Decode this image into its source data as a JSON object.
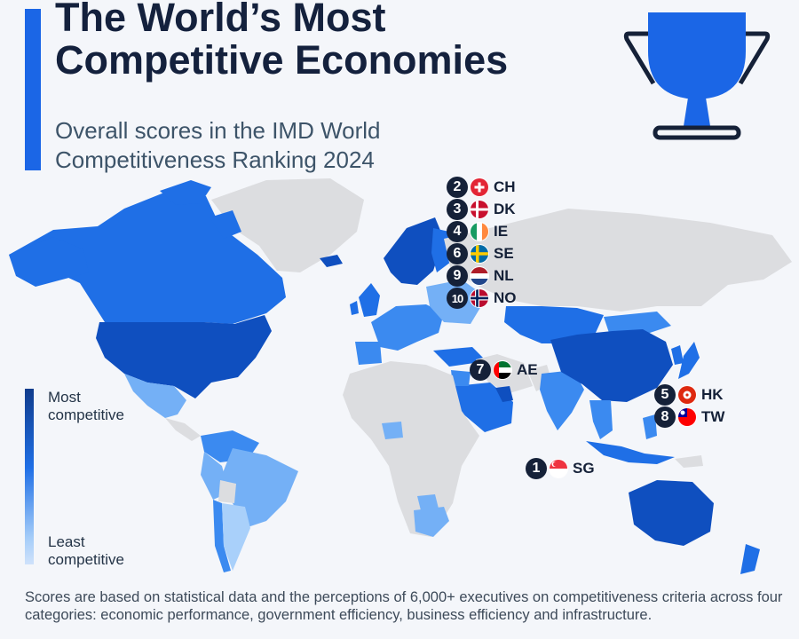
{
  "header": {
    "title_line1": "The World’s Most",
    "title_line2": "Competitive Economies",
    "subtitle_line1": "Overall scores in the IMD World",
    "subtitle_line2": "Competitiveness Ranking 2024"
  },
  "legend": {
    "most_line1": "Most",
    "most_line2": "competitive",
    "least_line1": "Least",
    "least_line2": "competitive"
  },
  "rankings": [
    {
      "rank": "1",
      "code": "SG",
      "flag": "singapore-flag-icon"
    },
    {
      "rank": "2",
      "code": "CH",
      "flag": "switzerland-flag-icon"
    },
    {
      "rank": "3",
      "code": "DK",
      "flag": "denmark-flag-icon"
    },
    {
      "rank": "4",
      "code": "IE",
      "flag": "ireland-flag-icon"
    },
    {
      "rank": "5",
      "code": "HK",
      "flag": "hong-kong-flag-icon"
    },
    {
      "rank": "6",
      "code": "SE",
      "flag": "sweden-flag-icon"
    },
    {
      "rank": "7",
      "code": "AE",
      "flag": "uae-flag-icon"
    },
    {
      "rank": "8",
      "code": "TW",
      "flag": "taiwan-flag-icon"
    },
    {
      "rank": "9",
      "code": "NL",
      "flag": "netherlands-flag-icon"
    },
    {
      "rank": "10",
      "code": "NO",
      "flag": "norway-flag-icon"
    }
  ],
  "footnote": "Scores are based on statistical data and the perceptions of 6,000+ executives on competitiveness criteria across four categories: economic performance, government efficiency, business efficiency and infrastructure.",
  "colors": {
    "accent": "#1b66e6",
    "no_data": "#dcdde0",
    "most": "#0f4fbf",
    "high": "#1f6fe6",
    "mid": "#3b8af0",
    "low": "#74b0f6",
    "least": "#a9d0fa"
  },
  "icons": {
    "trophy": "trophy-icon"
  }
}
